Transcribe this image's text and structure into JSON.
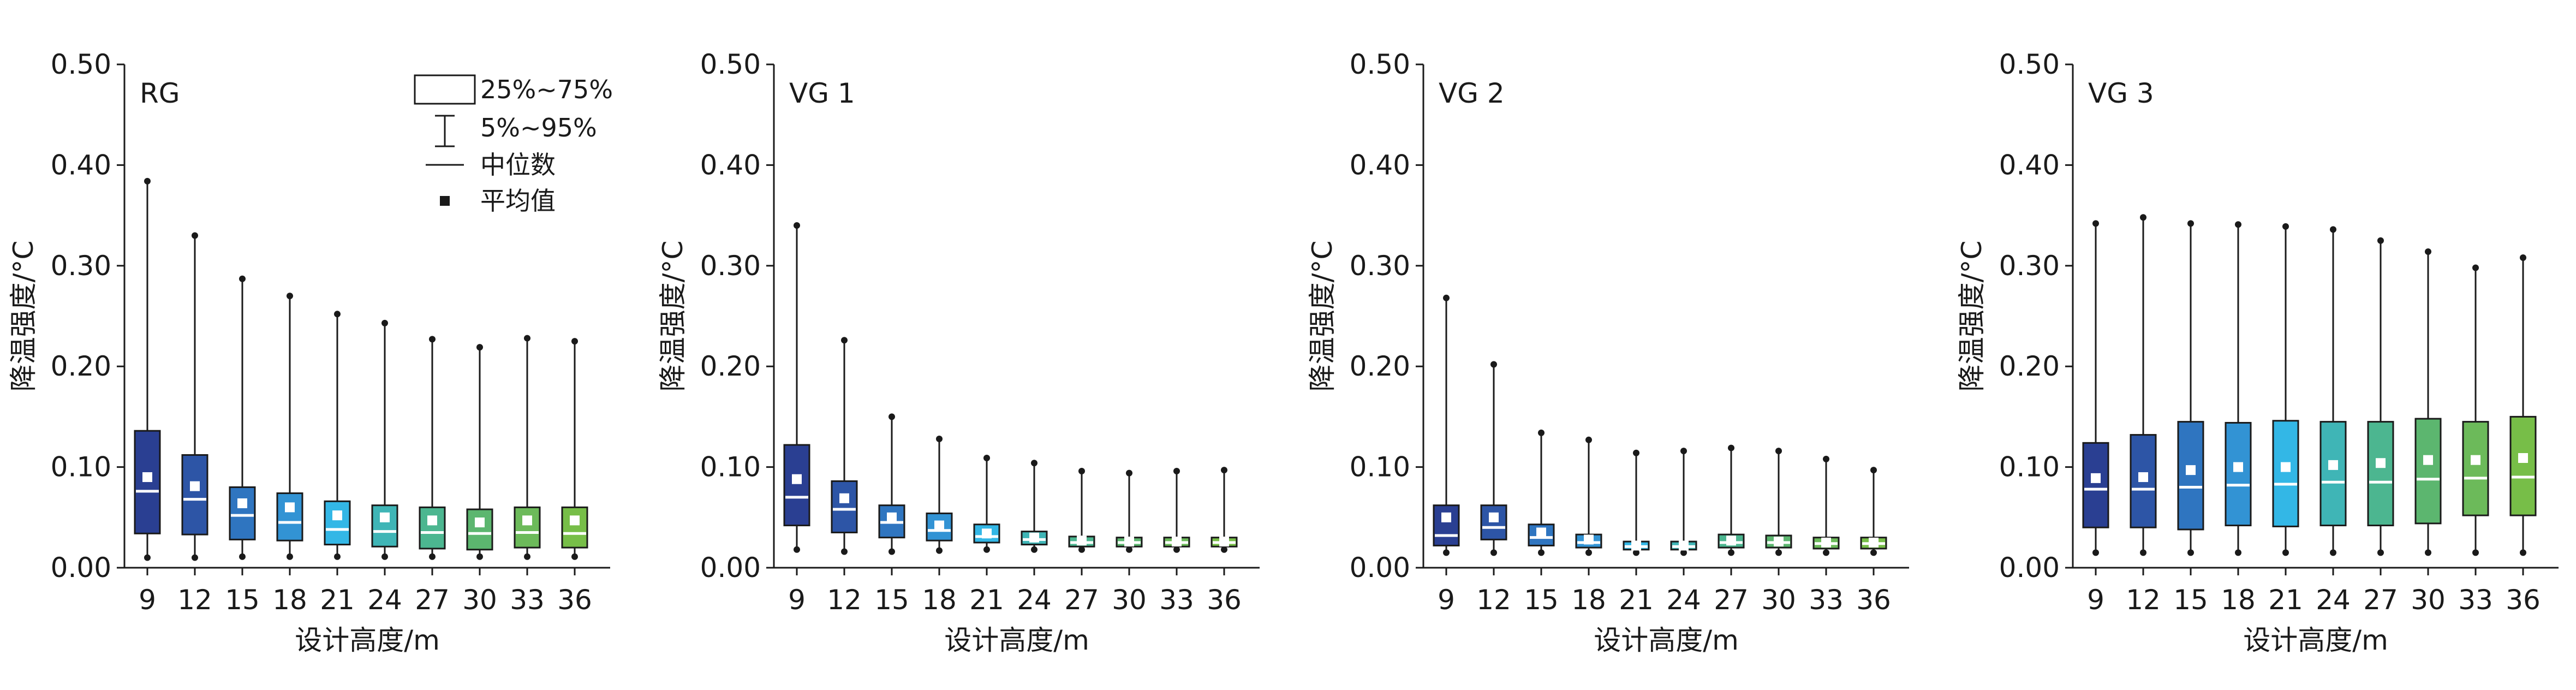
{
  "chart_data": [
    {
      "type": "box",
      "panel_label": "RG",
      "xlabel": "设计高度/m",
      "ylabel": "降温强度/°C",
      "categories": [
        "9",
        "12",
        "15",
        "18",
        "21",
        "24",
        "27",
        "30",
        "33",
        "36"
      ],
      "ylim": [
        0,
        0.5
      ],
      "yticks": [
        "0.00",
        "0.10",
        "0.20",
        "0.30",
        "0.40",
        "0.50"
      ],
      "boxes": [
        {
          "p5": 0.01,
          "q1": 0.034,
          "median": 0.076,
          "mean": 0.09,
          "q3": 0.136,
          "p95": 0.384
        },
        {
          "p5": 0.01,
          "q1": 0.033,
          "median": 0.068,
          "mean": 0.081,
          "q3": 0.112,
          "p95": 0.33
        },
        {
          "p5": 0.011,
          "q1": 0.028,
          "median": 0.052,
          "mean": 0.064,
          "q3": 0.08,
          "p95": 0.287
        },
        {
          "p5": 0.011,
          "q1": 0.027,
          "median": 0.045,
          "mean": 0.06,
          "q3": 0.074,
          "p95": 0.27
        },
        {
          "p5": 0.011,
          "q1": 0.023,
          "median": 0.038,
          "mean": 0.052,
          "q3": 0.066,
          "p95": 0.252
        },
        {
          "p5": 0.011,
          "q1": 0.021,
          "median": 0.036,
          "mean": 0.05,
          "q3": 0.062,
          "p95": 0.243
        },
        {
          "p5": 0.011,
          "q1": 0.019,
          "median": 0.035,
          "mean": 0.047,
          "q3": 0.06,
          "p95": 0.227
        },
        {
          "p5": 0.011,
          "q1": 0.018,
          "median": 0.034,
          "mean": 0.045,
          "q3": 0.058,
          "p95": 0.219
        },
        {
          "p5": 0.011,
          "q1": 0.02,
          "median": 0.035,
          "mean": 0.047,
          "q3": 0.06,
          "p95": 0.228
        },
        {
          "p5": 0.011,
          "q1": 0.02,
          "median": 0.034,
          "mean": 0.047,
          "q3": 0.06,
          "p95": 0.225
        }
      ]
    },
    {
      "type": "box",
      "panel_label": "VG 1",
      "xlabel": "设计高度/m",
      "ylabel": "降温强度/°C",
      "categories": [
        "9",
        "12",
        "15",
        "18",
        "21",
        "24",
        "27",
        "30",
        "33",
        "36"
      ],
      "ylim": [
        0,
        0.5
      ],
      "yticks": [
        "0.00",
        "0.10",
        "0.20",
        "0.30",
        "0.40",
        "0.50"
      ],
      "boxes": [
        {
          "p5": 0.018,
          "q1": 0.042,
          "median": 0.07,
          "mean": 0.088,
          "q3": 0.122,
          "p95": 0.34
        },
        {
          "p5": 0.016,
          "q1": 0.035,
          "median": 0.058,
          "mean": 0.069,
          "q3": 0.086,
          "p95": 0.226
        },
        {
          "p5": 0.016,
          "q1": 0.03,
          "median": 0.045,
          "mean": 0.05,
          "q3": 0.062,
          "p95": 0.15
        },
        {
          "p5": 0.017,
          "q1": 0.027,
          "median": 0.037,
          "mean": 0.042,
          "q3": 0.054,
          "p95": 0.128
        },
        {
          "p5": 0.018,
          "q1": 0.025,
          "median": 0.031,
          "mean": 0.034,
          "q3": 0.043,
          "p95": 0.109
        },
        {
          "p5": 0.018,
          "q1": 0.023,
          "median": 0.028,
          "mean": 0.03,
          "q3": 0.036,
          "p95": 0.104
        },
        {
          "p5": 0.018,
          "q1": 0.021,
          "median": 0.025,
          "mean": 0.027,
          "q3": 0.031,
          "p95": 0.096
        },
        {
          "p5": 0.018,
          "q1": 0.021,
          "median": 0.025,
          "mean": 0.026,
          "q3": 0.03,
          "p95": 0.094
        },
        {
          "p5": 0.018,
          "q1": 0.021,
          "median": 0.025,
          "mean": 0.026,
          "q3": 0.03,
          "p95": 0.096
        },
        {
          "p5": 0.018,
          "q1": 0.021,
          "median": 0.025,
          "mean": 0.026,
          "q3": 0.03,
          "p95": 0.097
        }
      ]
    },
    {
      "type": "box",
      "panel_label": "VG 2",
      "xlabel": "设计高度/m",
      "ylabel": "降温强度/°C",
      "categories": [
        "9",
        "12",
        "15",
        "18",
        "21",
        "24",
        "27",
        "30",
        "33",
        "36"
      ],
      "ylim": [
        0,
        0.5
      ],
      "yticks": [
        "0.00",
        "0.10",
        "0.20",
        "0.30",
        "0.40",
        "0.50"
      ],
      "boxes": [
        {
          "p5": 0.015,
          "q1": 0.022,
          "median": 0.032,
          "mean": 0.05,
          "q3": 0.062,
          "p95": 0.268
        },
        {
          "p5": 0.015,
          "q1": 0.028,
          "median": 0.04,
          "mean": 0.05,
          "q3": 0.062,
          "p95": 0.202
        },
        {
          "p5": 0.015,
          "q1": 0.022,
          "median": 0.03,
          "mean": 0.035,
          "q3": 0.043,
          "p95": 0.134
        },
        {
          "p5": 0.015,
          "q1": 0.02,
          "median": 0.025,
          "mean": 0.028,
          "q3": 0.033,
          "p95": 0.127
        },
        {
          "p5": 0.015,
          "q1": 0.018,
          "median": 0.021,
          "mean": 0.022,
          "q3": 0.026,
          "p95": 0.114
        },
        {
          "p5": 0.015,
          "q1": 0.018,
          "median": 0.021,
          "mean": 0.022,
          "q3": 0.026,
          "p95": 0.116
        },
        {
          "p5": 0.015,
          "q1": 0.02,
          "median": 0.025,
          "mean": 0.027,
          "q3": 0.033,
          "p95": 0.119
        },
        {
          "p5": 0.015,
          "q1": 0.02,
          "median": 0.025,
          "mean": 0.026,
          "q3": 0.032,
          "p95": 0.116
        },
        {
          "p5": 0.015,
          "q1": 0.019,
          "median": 0.024,
          "mean": 0.025,
          "q3": 0.03,
          "p95": 0.108
        },
        {
          "p5": 0.015,
          "q1": 0.019,
          "median": 0.024,
          "mean": 0.025,
          "q3": 0.03,
          "p95": 0.097
        }
      ]
    },
    {
      "type": "box",
      "panel_label": "VG 3",
      "xlabel": "设计高度/m",
      "ylabel": "降温强度/°C",
      "categories": [
        "9",
        "12",
        "15",
        "18",
        "21",
        "24",
        "27",
        "30",
        "33",
        "36"
      ],
      "ylim": [
        0,
        0.5
      ],
      "yticks": [
        "0.00",
        "0.10",
        "0.20",
        "0.30",
        "0.40",
        "0.50"
      ],
      "boxes": [
        {
          "p5": 0.015,
          "q1": 0.04,
          "median": 0.078,
          "mean": 0.089,
          "q3": 0.124,
          "p95": 0.342
        },
        {
          "p5": 0.015,
          "q1": 0.04,
          "median": 0.078,
          "mean": 0.09,
          "q3": 0.132,
          "p95": 0.348
        },
        {
          "p5": 0.015,
          "q1": 0.038,
          "median": 0.08,
          "mean": 0.097,
          "q3": 0.145,
          "p95": 0.342
        },
        {
          "p5": 0.015,
          "q1": 0.042,
          "median": 0.082,
          "mean": 0.1,
          "q3": 0.144,
          "p95": 0.341
        },
        {
          "p5": 0.015,
          "q1": 0.041,
          "median": 0.083,
          "mean": 0.1,
          "q3": 0.146,
          "p95": 0.339
        },
        {
          "p5": 0.015,
          "q1": 0.042,
          "median": 0.085,
          "mean": 0.102,
          "q3": 0.145,
          "p95": 0.336
        },
        {
          "p5": 0.015,
          "q1": 0.042,
          "median": 0.085,
          "mean": 0.104,
          "q3": 0.145,
          "p95": 0.325
        },
        {
          "p5": 0.015,
          "q1": 0.044,
          "median": 0.088,
          "mean": 0.107,
          "q3": 0.148,
          "p95": 0.314
        },
        {
          "p5": 0.015,
          "q1": 0.052,
          "median": 0.089,
          "mean": 0.107,
          "q3": 0.145,
          "p95": 0.298
        },
        {
          "p5": 0.015,
          "q1": 0.052,
          "median": 0.09,
          "mean": 0.109,
          "q3": 0.15,
          "p95": 0.308
        }
      ]
    }
  ],
  "box_colors": [
    "#2a3f92",
    "#2d55a6",
    "#2f75c0",
    "#3293d4",
    "#33b7e6",
    "#3fb5b6",
    "#4cb690",
    "#5cb66f",
    "#6cba5a",
    "#77be48"
  ],
  "legend": {
    "box": "25%~75%",
    "whisker": "5%~95%",
    "median": "中位数",
    "mean": "平均值"
  }
}
